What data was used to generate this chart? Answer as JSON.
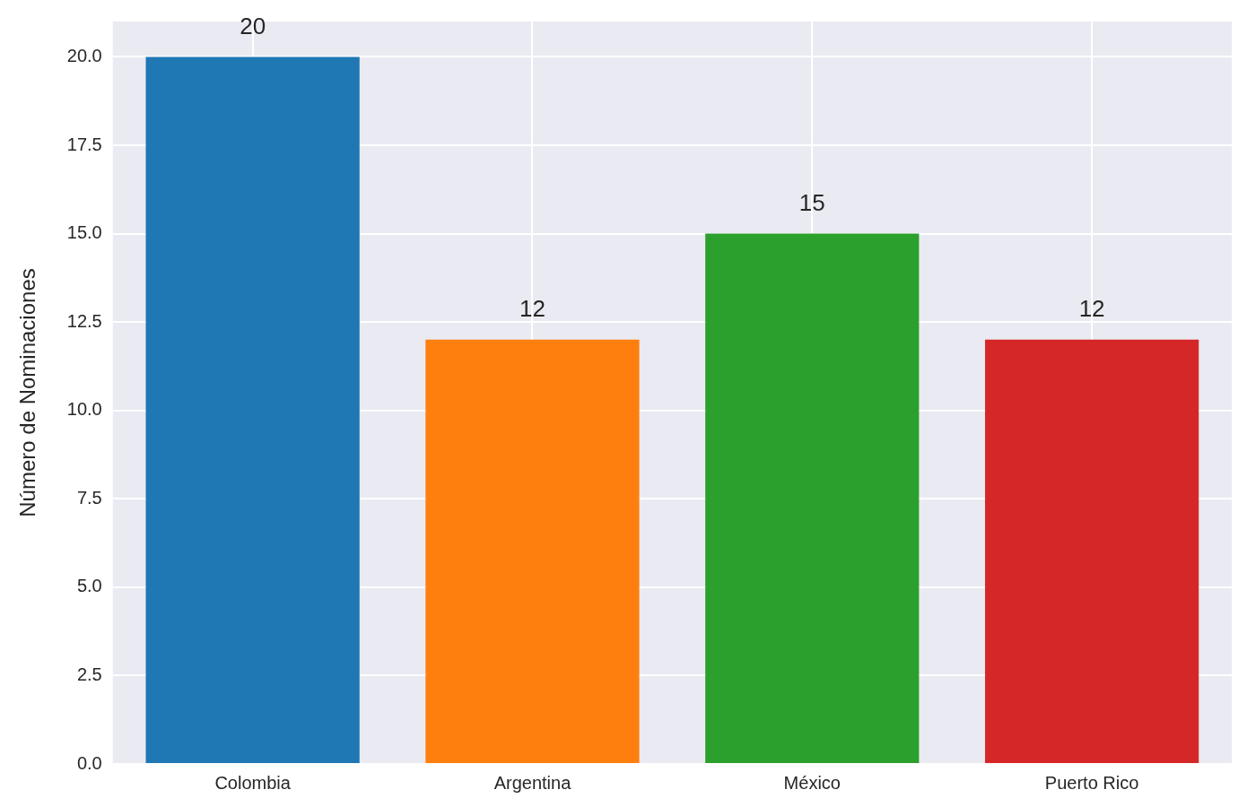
{
  "chart_data": {
    "type": "bar",
    "ylabel": "Número de Nominaciones",
    "categories": [
      "Colombia",
      "Argentina",
      "México",
      "Puerto Rico"
    ],
    "values": [
      20,
      12,
      15,
      12
    ],
    "colors": [
      "#1f77b4",
      "#ff7f0e",
      "#2ca02c",
      "#d62728"
    ],
    "ylim": [
      0,
      21
    ],
    "yticks": [
      {
        "value": 0,
        "label": "0.0"
      },
      2.5,
      {
        "value": 5,
        "label": "5.0"
      },
      7.5,
      {
        "value": 10,
        "label": "10.0"
      },
      12.5,
      {
        "value": 15,
        "label": "15.0"
      },
      17.5,
      {
        "value": 20,
        "label": "20.0"
      }
    ],
    "grid": true,
    "data_labels": true
  }
}
